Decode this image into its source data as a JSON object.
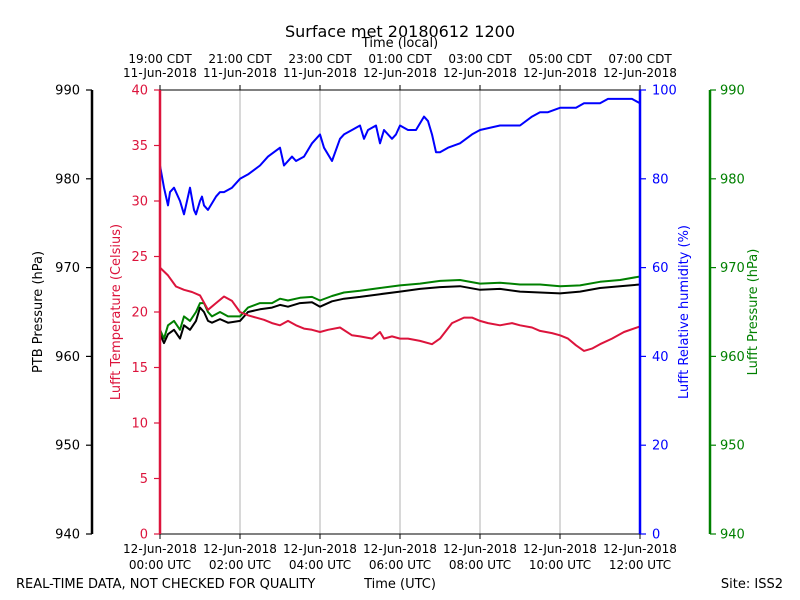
{
  "chart_data": {
    "type": "line",
    "title": "Surface met 20180612 1200",
    "top_axis": {
      "label": "Time (local)",
      "ticks": [
        {
          "line1": "19:00 CDT",
          "line2": "11-Jun-2018"
        },
        {
          "line1": "21:00 CDT",
          "line2": "11-Jun-2018"
        },
        {
          "line1": "23:00 CDT",
          "line2": "11-Jun-2018"
        },
        {
          "line1": "01:00 CDT",
          "line2": "12-Jun-2018"
        },
        {
          "line1": "03:00 CDT",
          "line2": "12-Jun-2018"
        },
        {
          "line1": "05:00 CDT",
          "line2": "12-Jun-2018"
        },
        {
          "line1": "07:00 CDT",
          "line2": "12-Jun-2018"
        }
      ]
    },
    "bottom_axis": {
      "label": "Time (UTC)",
      "xlim": [
        0,
        12
      ],
      "ticks": [
        {
          "value": 0,
          "line1": "12-Jun-2018",
          "line2": "00:00 UTC"
        },
        {
          "value": 2,
          "line1": "12-Jun-2018",
          "line2": "02:00 UTC"
        },
        {
          "value": 4,
          "line1": "12-Jun-2018",
          "line2": "04:00 UTC"
        },
        {
          "value": 6,
          "line1": "12-Jun-2018",
          "line2": "06:00 UTC"
        },
        {
          "value": 8,
          "line1": "12-Jun-2018",
          "line2": "08:00 UTC"
        },
        {
          "value": 10,
          "line1": "12-Jun-2018",
          "line2": "10:00 UTC"
        },
        {
          "value": 12,
          "line1": "12-Jun-2018",
          "line2": "12:00 UTC"
        }
      ]
    },
    "axes": {
      "ptb_pressure": {
        "label": "PTB Pressure (hPa)",
        "color": "#000000",
        "ylim": [
          940,
          990
        ],
        "ticks": [
          940,
          950,
          960,
          970,
          980,
          990
        ]
      },
      "temperature": {
        "label": "Lufft Temperature (Celsius)",
        "color": "#dc143c",
        "ylim": [
          0,
          40
        ],
        "ticks": [
          0,
          5,
          10,
          15,
          20,
          25,
          30,
          35,
          40
        ]
      },
      "humidity": {
        "label": "Lufft Relative humidity (%)",
        "color": "#0000ff",
        "ylim": [
          0,
          100
        ],
        "ticks": [
          0,
          20,
          40,
          60,
          80,
          100
        ]
      },
      "lufft_pressure": {
        "label": "Lufft Pressure (hPa)",
        "color": "#008000",
        "ylim": [
          940,
          990
        ],
        "ticks": [
          940,
          950,
          960,
          970,
          980,
          990
        ]
      }
    },
    "series": [
      {
        "name": "Lufft Relative humidity",
        "axis": "humidity",
        "color": "#0000ff",
        "x": [
          0,
          0.1,
          0.2,
          0.25,
          0.35,
          0.5,
          0.6,
          0.75,
          0.85,
          0.9,
          1.0,
          1.05,
          1.1,
          1.2,
          1.4,
          1.5,
          1.6,
          1.8,
          2.0,
          2.2,
          2.5,
          2.7,
          3.0,
          3.1,
          3.3,
          3.4,
          3.6,
          3.8,
          4.0,
          4.1,
          4.3,
          4.5,
          4.6,
          4.8,
          5.0,
          5.1,
          5.2,
          5.4,
          5.5,
          5.6,
          5.8,
          5.9,
          6.0,
          6.2,
          6.4,
          6.6,
          6.7,
          6.8,
          6.9,
          7.0,
          7.2,
          7.5,
          7.8,
          8.0,
          8.5,
          9.0,
          9.3,
          9.5,
          9.7,
          10.0,
          10.2,
          10.4,
          10.6,
          10.8,
          11.0,
          11.2,
          11.5,
          11.8,
          12.0
        ],
        "values": [
          83,
          78,
          74,
          77,
          78,
          75,
          72,
          78,
          73,
          72,
          75,
          76,
          74,
          73,
          76,
          77,
          77,
          78,
          80,
          81,
          83,
          85,
          87,
          83,
          85,
          84,
          85,
          88,
          90,
          87,
          84,
          89,
          90,
          91,
          92,
          89,
          91,
          92,
          88,
          91,
          89,
          90,
          92,
          91,
          91,
          94,
          93,
          90,
          86,
          86,
          87,
          88,
          90,
          91,
          92,
          92,
          94,
          95,
          95,
          96,
          96,
          96,
          97,
          97,
          97,
          98,
          98,
          98,
          97
        ]
      },
      {
        "name": "Lufft Pressure",
        "axis": "lufft_pressure",
        "color": "#008000",
        "x": [
          0,
          0.1,
          0.2,
          0.35,
          0.5,
          0.6,
          0.75,
          0.9,
          1.0,
          1.1,
          1.2,
          1.3,
          1.5,
          1.7,
          2.0,
          2.2,
          2.5,
          2.8,
          3.0,
          3.2,
          3.5,
          3.8,
          4.0,
          4.3,
          4.6,
          5.0,
          5.5,
          6.0,
          6.5,
          7.0,
          7.5,
          8.0,
          8.5,
          9.0,
          9.5,
          10.0,
          10.5,
          11.0,
          11.5,
          12.0
        ],
        "values": [
          963,
          962,
          963.5,
          964,
          963,
          964.5,
          964,
          965,
          966,
          966,
          965,
          964.5,
          965,
          964.5,
          964.5,
          965.5,
          966,
          966,
          966.5,
          966.3,
          966.6,
          966.7,
          966.3,
          966.8,
          967.2,
          967.4,
          967.7,
          968,
          968.2,
          968.5,
          968.6,
          968.2,
          968.3,
          968.1,
          968.1,
          967.9,
          968,
          968.4,
          968.6,
          969
        ]
      },
      {
        "name": "PTB Pressure",
        "axis": "ptb_pressure",
        "color": "#000000",
        "x": [
          0,
          0.1,
          0.2,
          0.35,
          0.5,
          0.6,
          0.75,
          0.9,
          1.0,
          1.1,
          1.2,
          1.3,
          1.5,
          1.7,
          2.0,
          2.2,
          2.5,
          2.8,
          3.0,
          3.2,
          3.5,
          3.8,
          4.0,
          4.3,
          4.6,
          5.0,
          5.5,
          6.0,
          6.5,
          7.0,
          7.5,
          8.0,
          8.5,
          9.0,
          9.5,
          10.0,
          10.5,
          11.0,
          11.5,
          12.0
        ],
        "values": [
          962.5,
          961.5,
          962.5,
          963,
          962,
          963.5,
          963,
          964,
          965.5,
          965,
          964,
          963.8,
          964.2,
          963.8,
          964,
          965,
          965.3,
          965.5,
          965.8,
          965.6,
          966,
          966.1,
          965.6,
          966.2,
          966.5,
          966.7,
          967,
          967.3,
          967.6,
          967.8,
          967.9,
          967.5,
          967.6,
          967.3,
          967.2,
          967.1,
          967.3,
          967.7,
          967.9,
          968.1
        ]
      },
      {
        "name": "Lufft Temperature",
        "axis": "temperature",
        "color": "#dc143c",
        "x": [
          0,
          0.2,
          0.4,
          0.6,
          0.8,
          1.0,
          1.2,
          1.4,
          1.6,
          1.8,
          2.0,
          2.2,
          2.4,
          2.6,
          2.8,
          3.0,
          3.2,
          3.4,
          3.6,
          3.8,
          4.0,
          4.2,
          4.5,
          4.8,
          5.0,
          5.3,
          5.5,
          5.6,
          5.8,
          6.0,
          6.2,
          6.5,
          6.8,
          7.0,
          7.3,
          7.6,
          7.8,
          8.0,
          8.2,
          8.5,
          8.8,
          9.0,
          9.3,
          9.5,
          9.8,
          10.0,
          10.2,
          10.4,
          10.6,
          10.8,
          11.0,
          11.3,
          11.6,
          12.0
        ],
        "values": [
          24,
          23.3,
          22.3,
          22,
          21.8,
          21.5,
          20.2,
          20.8,
          21.4,
          21,
          20,
          19.7,
          19.5,
          19.3,
          19,
          18.8,
          19.2,
          18.8,
          18.5,
          18.4,
          18.2,
          18.4,
          18.6,
          17.9,
          17.8,
          17.6,
          18.2,
          17.6,
          17.8,
          17.6,
          17.6,
          17.4,
          17.1,
          17.6,
          19,
          19.5,
          19.5,
          19.2,
          19,
          18.8,
          19,
          18.8,
          18.6,
          18.3,
          18.1,
          17.9,
          17.6,
          17,
          16.5,
          16.7,
          17.1,
          17.6,
          18.2,
          18.7
        ]
      }
    ],
    "grid": "vertical",
    "legend": "none"
  },
  "footer": {
    "left": "REAL-TIME DATA, NOT CHECKED FOR QUALITY",
    "center": "Time (UTC)",
    "right": "Site: ISS2"
  }
}
